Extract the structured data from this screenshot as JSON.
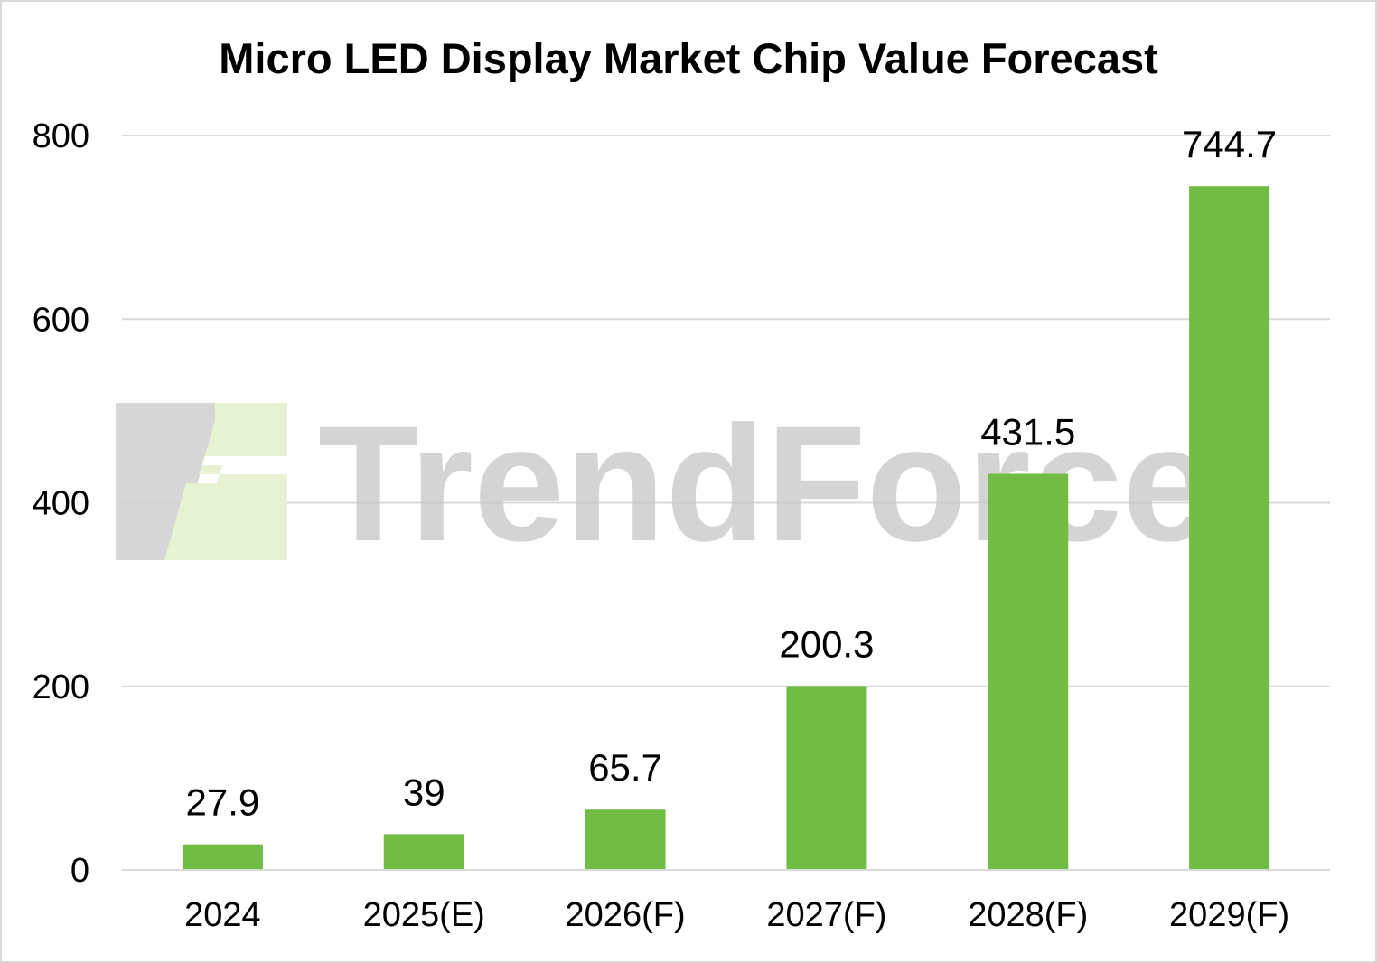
{
  "chart_data": {
    "type": "bar",
    "title": "Micro LED Display Market Chip Value Forecast",
    "categories": [
      "2024",
      "2025(E)",
      "2026(F)",
      "2027(F)",
      "2028(F)",
      "2029(F)"
    ],
    "values": [
      27.9,
      39,
      65.7,
      200.3,
      431.5,
      744.7
    ],
    "data_labels": [
      "27.9",
      "39",
      "65.7",
      "200.3",
      "431.5",
      "744.7"
    ],
    "yticks": [
      "0",
      "200",
      "400",
      "600",
      "800"
    ],
    "ylim": [
      0,
      800
    ],
    "grid": true,
    "legend": "none",
    "bar_color": "#70bc45",
    "grid_color": "#d9d9d9"
  },
  "watermark": {
    "text": "TrendForce",
    "color_gray": "#c9c9c9",
    "color_green": "#e6f2d2"
  }
}
